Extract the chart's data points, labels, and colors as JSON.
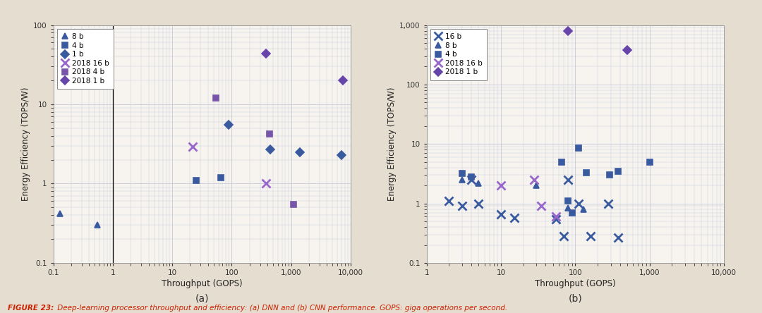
{
  "bg_color": "#e5ddd0",
  "plot_bg_color": "#f7f4f0",
  "grid_color": "#c5c9d8",
  "plot_a": {
    "title": "(a)",
    "xlabel": "Throughput (GOPS)",
    "ylabel": "Energy Efficiency (TOPS/W)",
    "xlim": [
      0.1,
      10000
    ],
    "ylim": [
      0.1,
      100
    ],
    "vline_x": 1.0,
    "series": [
      {
        "key": "8b",
        "color": "#3a5aa0",
        "marker": "^",
        "label": "8 b",
        "x": [
          0.13,
          0.55
        ],
        "y": [
          0.42,
          0.3
        ]
      },
      {
        "key": "4b",
        "color": "#3a5aa0",
        "marker": "s",
        "label": "4 b",
        "x": [
          25,
          65
        ],
        "y": [
          1.1,
          1.2
        ]
      },
      {
        "key": "1b",
        "color": "#3a5aa0",
        "marker": "D",
        "label": "1 b",
        "x": [
          90,
          450,
          1400,
          7000
        ],
        "y": [
          5.5,
          2.7,
          2.5,
          2.3
        ]
      },
      {
        "key": "2018_16b",
        "color": "#9966cc",
        "marker": "x",
        "label": "2018 16 b",
        "x": [
          22,
          380
        ],
        "y": [
          2.9,
          1.0
        ]
      },
      {
        "key": "2018_4b",
        "color": "#7755aa",
        "marker": "s",
        "label": "2018 4 b",
        "x": [
          55,
          430,
          1100
        ],
        "y": [
          12.0,
          4.2,
          0.55
        ]
      },
      {
        "key": "2018_1b",
        "color": "#6644aa",
        "marker": "D",
        "label": "2018 1 b",
        "x": [
          380,
          7500
        ],
        "y": [
          44,
          20
        ]
      }
    ]
  },
  "plot_b": {
    "title": "(b)",
    "xlabel": "Throughput (GOPS)",
    "ylabel": "Energy Efficiency (TOPS/W)",
    "xlim": [
      1,
      10000
    ],
    "ylim": [
      0.1,
      1000
    ],
    "series": [
      {
        "key": "16b",
        "color": "#3a5aa0",
        "marker": "x",
        "label": "16 b",
        "x": [
          2,
          3,
          4,
          5,
          10,
          15,
          55,
          70,
          80,
          110,
          160,
          280,
          380
        ],
        "y": [
          1.1,
          0.9,
          2.5,
          1.0,
          0.65,
          0.58,
          0.55,
          0.28,
          2.5,
          1.0,
          0.28,
          1.0,
          0.27
        ]
      },
      {
        "key": "8b",
        "color": "#3a5aa0",
        "marker": "^",
        "label": "8 b",
        "x": [
          3,
          5,
          30,
          80,
          130
        ],
        "y": [
          2.5,
          2.2,
          2.0,
          0.85,
          0.8
        ]
      },
      {
        "key": "4b",
        "color": "#3a5aa0",
        "marker": "s",
        "label": "4 b",
        "x": [
          3,
          4,
          65,
          80,
          90,
          110,
          140,
          290,
          380,
          1000
        ],
        "y": [
          3.2,
          2.8,
          5.0,
          1.1,
          0.7,
          8.5,
          3.3,
          3.0,
          3.5,
          5.0
        ]
      },
      {
        "key": "2018_16b",
        "color": "#9966cc",
        "marker": "x",
        "label": "2018 16 b",
        "x": [
          10,
          28,
          35,
          55
        ],
        "y": [
          2.0,
          2.5,
          0.9,
          0.6
        ]
      },
      {
        "key": "2018_1b",
        "color": "#6644aa",
        "marker": "D",
        "label": "2018 1 b",
        "x": [
          80,
          500
        ],
        "y": [
          800,
          380
        ]
      }
    ]
  },
  "caption_bold": "FIGURE 23:",
  "caption_rest": " Deep-learning processor throughput and efficiency: (a) DNN and (b) CNN performance. GOPS: giga operations per second."
}
